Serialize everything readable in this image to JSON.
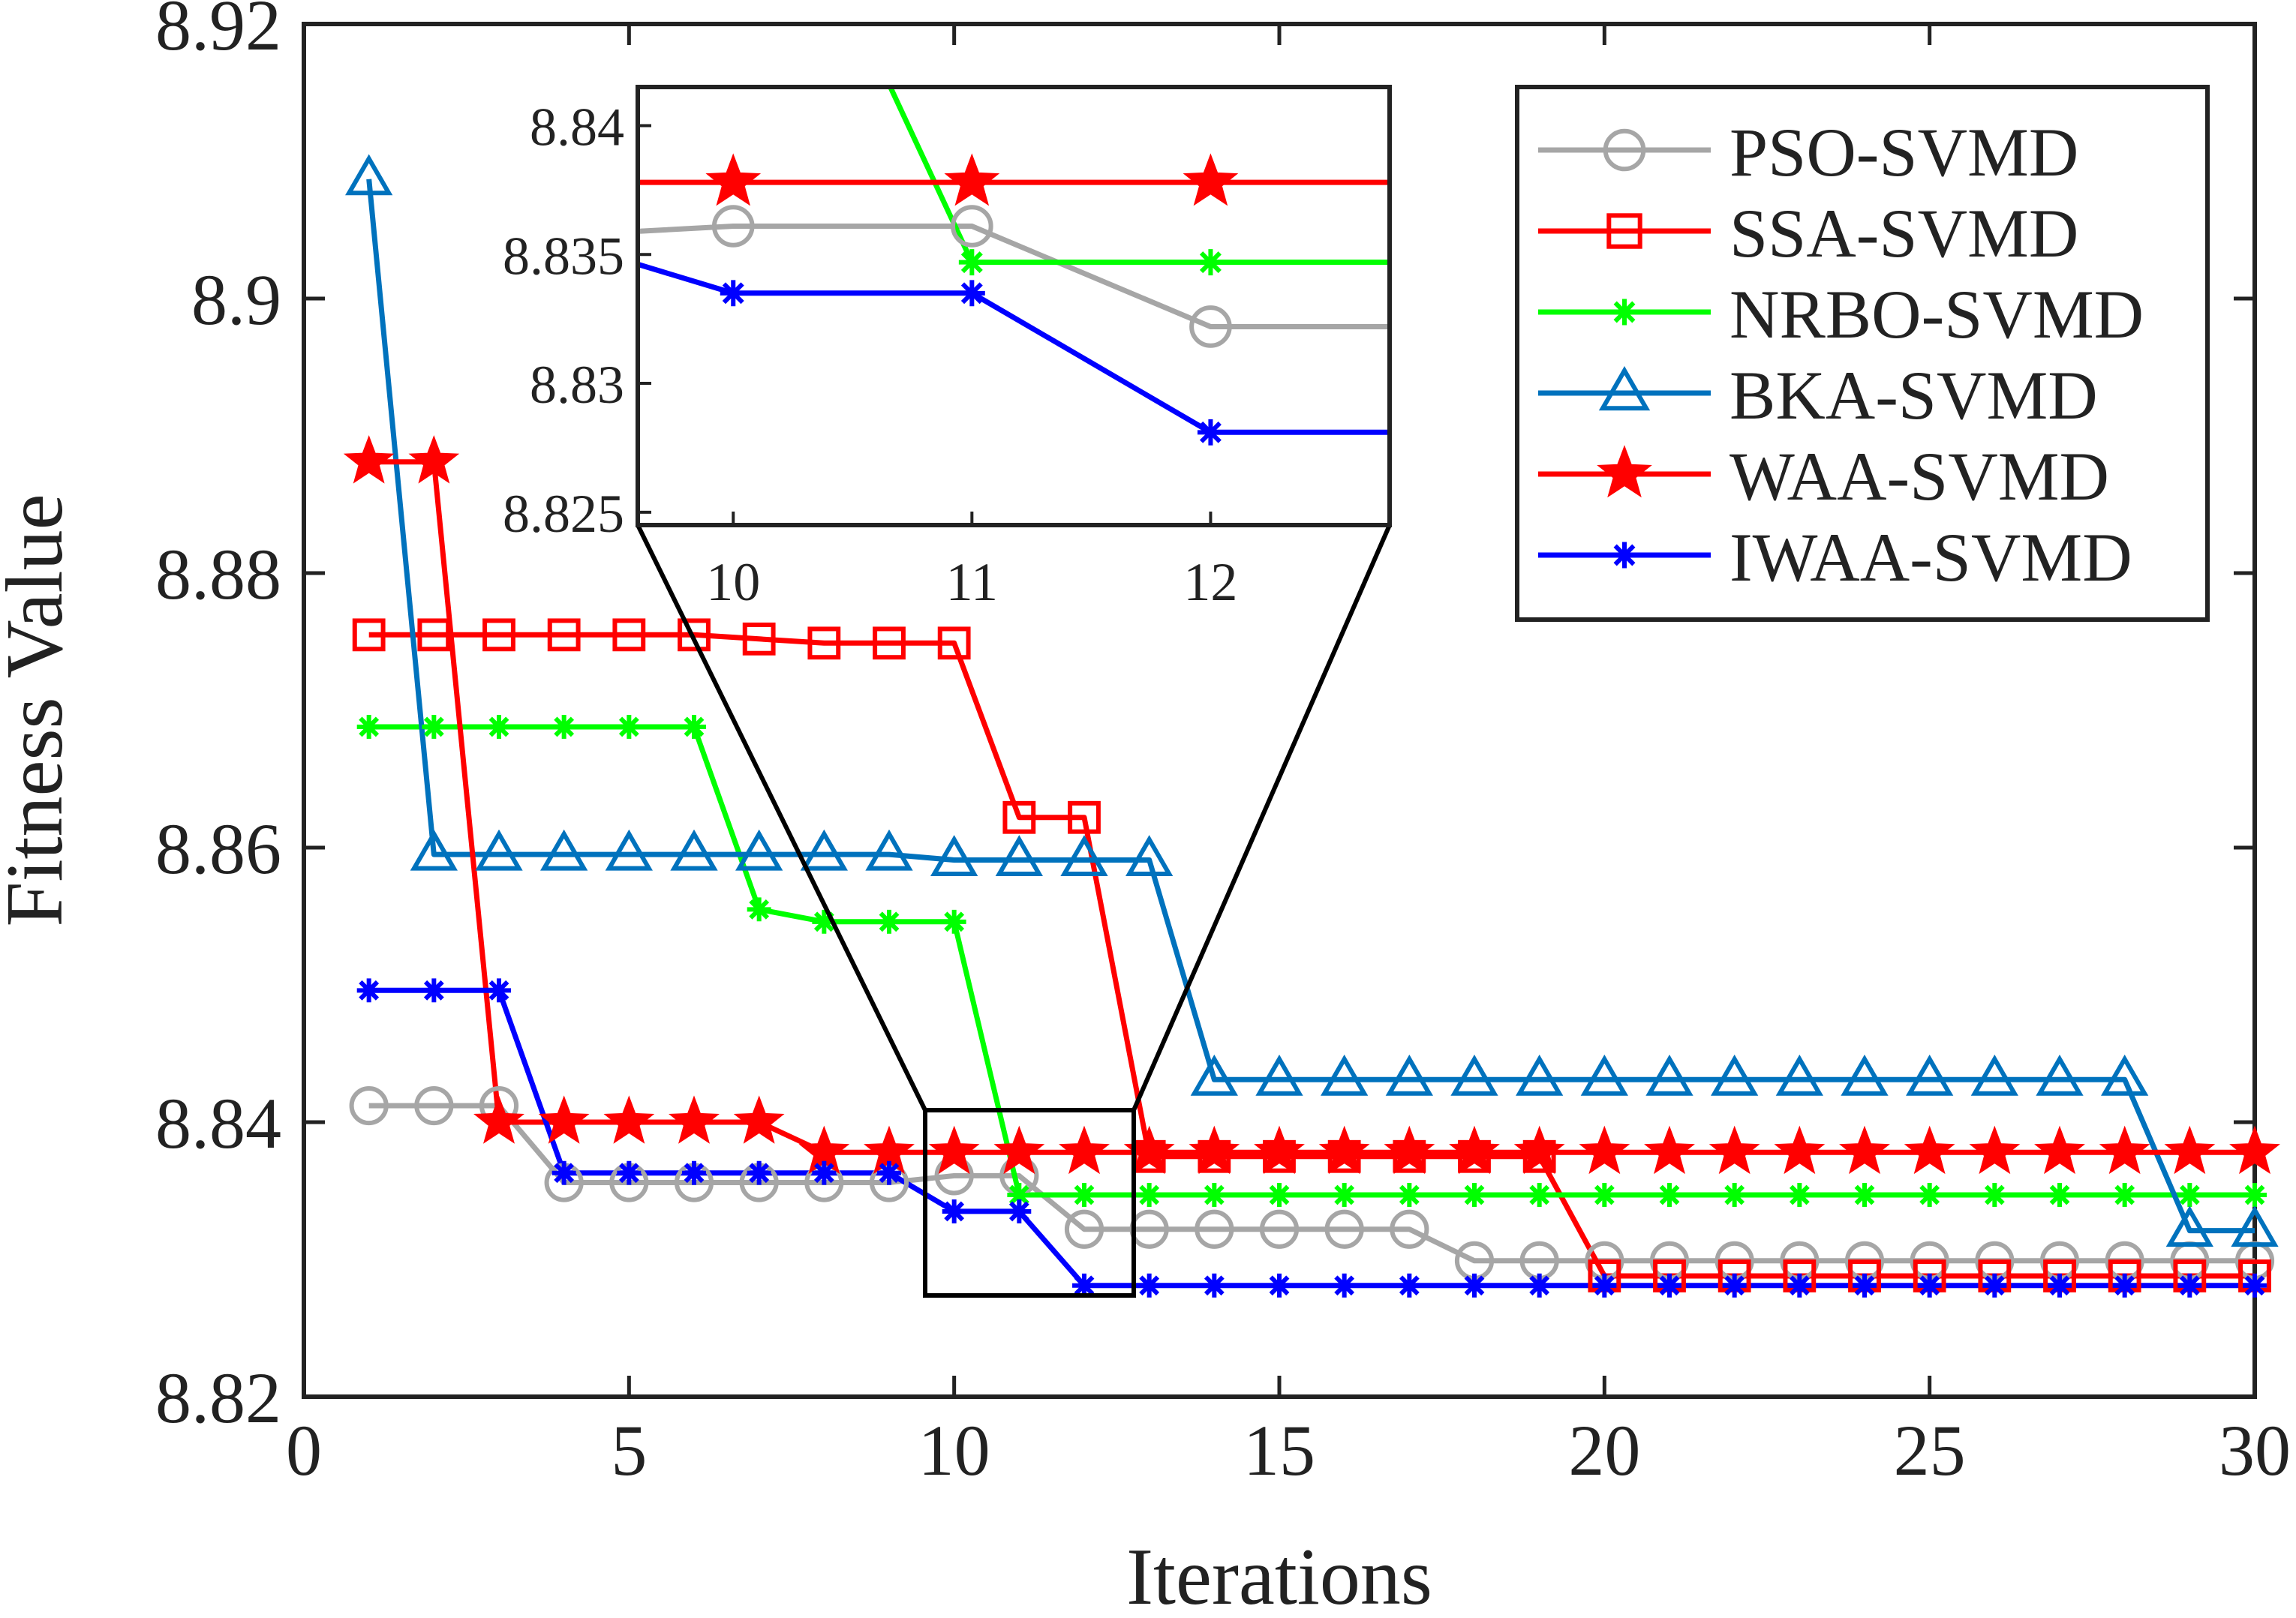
{
  "chart_data": {
    "type": "line",
    "title": "",
    "xlabel": "Iterations",
    "ylabel": "Fitness Value",
    "xlim": [
      0,
      30
    ],
    "ylim": [
      8.82,
      8.92
    ],
    "xticks": [
      "0",
      "5",
      "10",
      "15",
      "20",
      "25",
      "30"
    ],
    "yticks": [
      "8.82",
      "8.84",
      "8.86",
      "8.88",
      "8.9",
      "8.92"
    ],
    "legend_position": "top-right",
    "x": [
      1,
      2,
      3,
      4,
      5,
      6,
      7,
      8,
      9,
      10,
      11,
      12,
      13,
      14,
      15,
      16,
      17,
      18,
      19,
      20,
      21,
      22,
      23,
      24,
      25,
      26,
      27,
      28,
      29,
      30
    ],
    "series": [
      {
        "name": "PSO-SVMD",
        "color": "#a6a6a6",
        "marker": "circle",
        "values": [
          8.8412,
          8.8412,
          8.8412,
          8.8356,
          8.8356,
          8.8356,
          8.8356,
          8.8356,
          8.8356,
          8.8361,
          8.8361,
          8.8322,
          8.8322,
          8.8322,
          8.8322,
          8.8322,
          8.8322,
          8.8299,
          8.8299,
          8.8299,
          8.8299,
          8.8299,
          8.8299,
          8.8299,
          8.8299,
          8.8299,
          8.8299,
          8.8299,
          8.8299,
          8.8299
        ]
      },
      {
        "name": "SSA-SVMD",
        "color": "#ff0000",
        "marker": "square",
        "values": [
          8.8755,
          8.8755,
          8.8755,
          8.8755,
          8.8755,
          8.8755,
          8.8752,
          8.8749,
          8.8749,
          8.8749,
          8.8622,
          8.8622,
          8.8375,
          8.8375,
          8.8375,
          8.8375,
          8.8375,
          8.8375,
          8.8375,
          8.8288,
          8.8288,
          8.8288,
          8.8288,
          8.8288,
          8.8288,
          8.8288,
          8.8288,
          8.8288,
          8.8288,
          8.8288
        ]
      },
      {
        "name": "NRBO-SVMD",
        "color": "#00ff00",
        "marker": "asterisk",
        "values": [
          8.8688,
          8.8688,
          8.8688,
          8.8688,
          8.8688,
          8.8688,
          8.8555,
          8.8546,
          8.8546,
          8.8546,
          8.8347,
          8.8347,
          8.8347,
          8.8347,
          8.8347,
          8.8347,
          8.8347,
          8.8347,
          8.8347,
          8.8347,
          8.8347,
          8.8347,
          8.8347,
          8.8347,
          8.8347,
          8.8347,
          8.8347,
          8.8347,
          8.8347,
          8.8347
        ]
      },
      {
        "name": "BKA-SVMD",
        "color": "#0072bd",
        "marker": "triangle",
        "values": [
          8.9087,
          8.8595,
          8.8595,
          8.8595,
          8.8595,
          8.8595,
          8.8595,
          8.8595,
          8.8595,
          8.8591,
          8.8591,
          8.8591,
          8.8591,
          8.8431,
          8.8431,
          8.8431,
          8.8431,
          8.8431,
          8.8431,
          8.8431,
          8.8431,
          8.8431,
          8.8431,
          8.8431,
          8.8431,
          8.8431,
          8.8431,
          8.8431,
          8.8321,
          8.8321
        ]
      },
      {
        "name": "WAA-SVMD",
        "color": "#ff0000",
        "marker": "star",
        "values": [
          8.8881,
          8.8881,
          8.84,
          8.84,
          8.84,
          8.84,
          8.84,
          8.8378,
          8.8378,
          8.8378,
          8.8378,
          8.8378,
          8.8378,
          8.8378,
          8.8378,
          8.8378,
          8.8378,
          8.8378,
          8.8378,
          8.8378,
          8.8378,
          8.8378,
          8.8378,
          8.8378,
          8.8378,
          8.8378,
          8.8378,
          8.8378,
          8.8378,
          8.8378
        ]
      },
      {
        "name": "IWAA-SVMD",
        "color": "#0000ff",
        "marker": "asterisk",
        "values": [
          8.8496,
          8.8496,
          8.8496,
          8.8363,
          8.8363,
          8.8363,
          8.8363,
          8.8363,
          8.8363,
          8.8335,
          8.8335,
          8.8281,
          8.8281,
          8.8281,
          8.8281,
          8.8281,
          8.8281,
          8.8281,
          8.8281,
          8.8281,
          8.8281,
          8.8281,
          8.8281,
          8.8281,
          8.8281,
          8.8281,
          8.8281,
          8.8281,
          8.8281,
          8.8281
        ]
      }
    ],
    "inset": {
      "xlim": [
        9.6,
        12.75
      ],
      "ylim": [
        8.8245,
        8.8415
      ],
      "xticks": [
        "10",
        "11",
        "12"
      ],
      "yticks": [
        "8.825",
        "8.83",
        "8.835",
        "8.84"
      ]
    }
  }
}
